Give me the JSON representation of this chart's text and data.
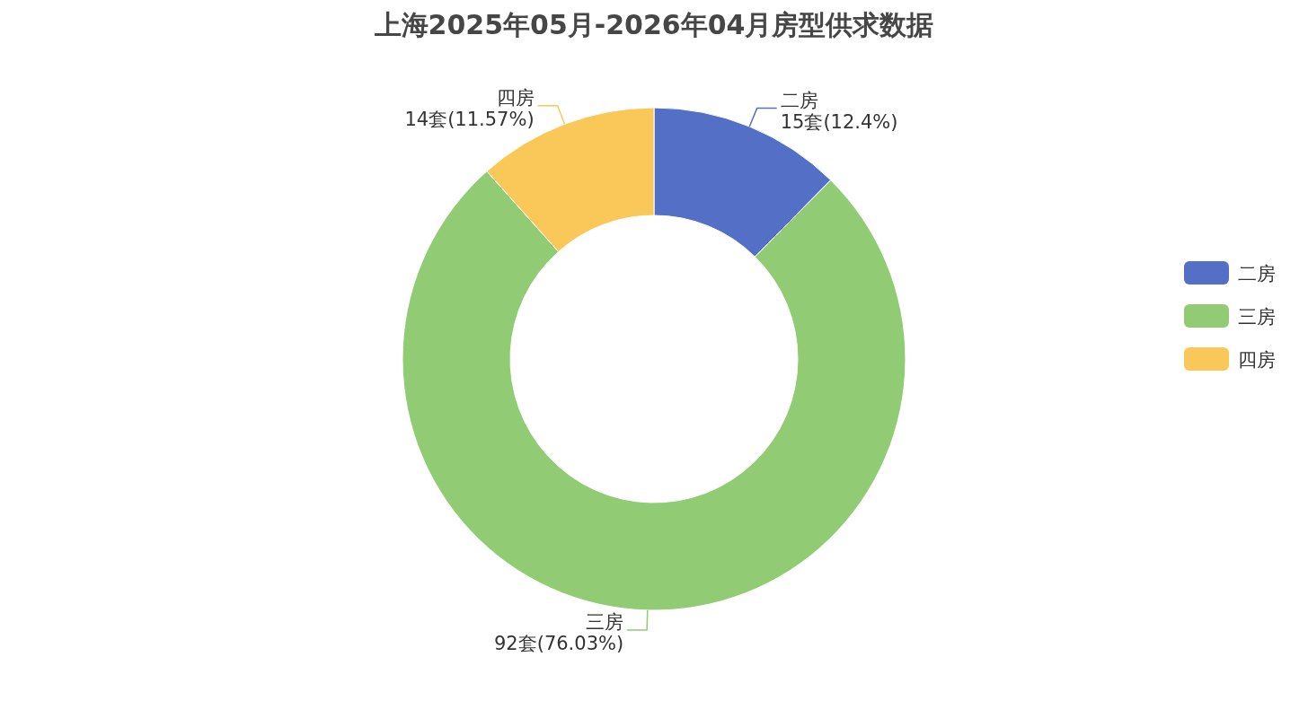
{
  "chart_data": {
    "type": "donut",
    "title": "上海2025年05月-2026年04月房型供求数据",
    "categories": [
      "二房",
      "三房",
      "四房"
    ],
    "values": [
      15,
      92,
      14
    ],
    "value_labels": [
      "15套(12.4%)",
      "92套(76.03%)",
      "14套(11.57%)"
    ],
    "colors": [
      "#5470c6",
      "#91cc75",
      "#fac858"
    ],
    "legend": "right"
  }
}
